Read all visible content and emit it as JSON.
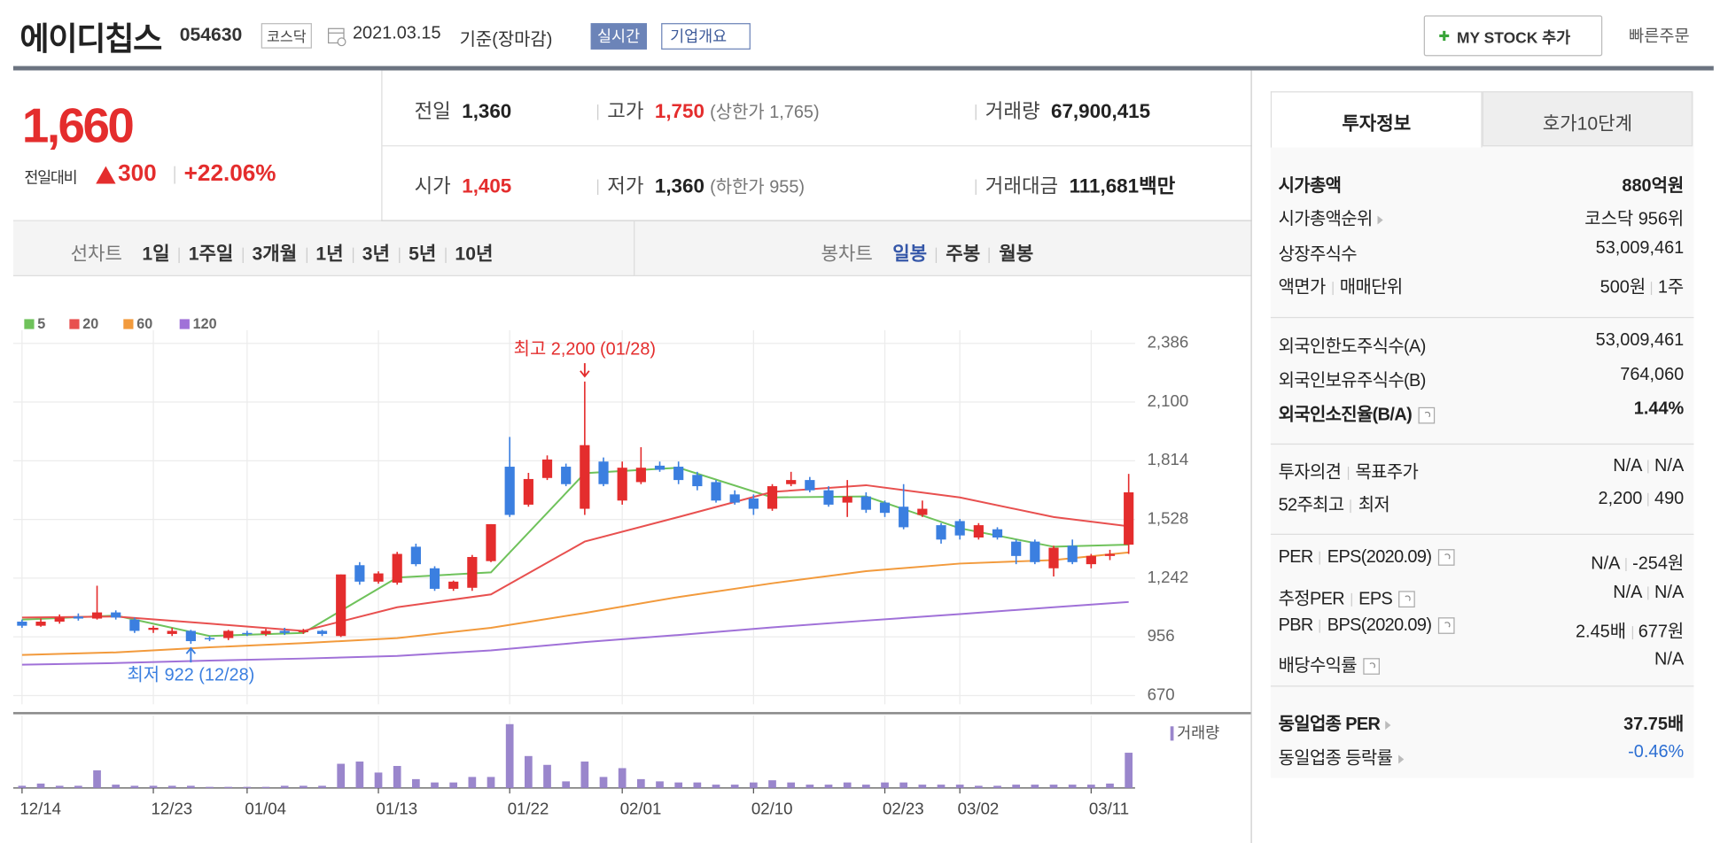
{
  "header": {
    "name": "에이디칩스",
    "code": "054630",
    "market": "코스닥",
    "date": "2021.03.15",
    "basis": "기준(장마감)",
    "realtime": "실시간",
    "overview": "기업개요",
    "mystock": "MY STOCK 추가",
    "quick_order": "빠른주문"
  },
  "quote": {
    "price": "1,660",
    "change_label": "전일대비",
    "change": "300",
    "rate": "+22.06%"
  },
  "summary": [
    {
      "label": "전일",
      "value": "1,360"
    },
    {
      "label": "고가",
      "value": "1,750",
      "note": "(상한가 1,765)"
    },
    {
      "label": "거래량",
      "value": "67,900,415"
    },
    {
      "label": "시가",
      "value": "1,405"
    },
    {
      "label": "저가",
      "value": "1,360",
      "note": "(하한가 955)"
    },
    {
      "label": "거래대금",
      "value": "111,681",
      "unit": "백만"
    }
  ],
  "periods": {
    "line_label": "선차트",
    "line": [
      "1일",
      "1주일",
      "3개월",
      "1년",
      "3년",
      "5년",
      "10년"
    ],
    "candle_label": "봉차트",
    "candle": [
      "일봉",
      "주봉",
      "월봉"
    ]
  },
  "invest": {
    "tabs": [
      "투자정보",
      "호가10단계"
    ],
    "sections": [
      [
        {
          "label": [
            "시가총액"
          ],
          "value": [
            "880억원"
          ],
          "bold": true
        },
        {
          "label": [
            "시가총액순위"
          ],
          "value": [
            "코스닥 956위"
          ],
          "link": true
        },
        {
          "label": [
            "상장주식수"
          ],
          "value": [
            "53,009,461"
          ]
        },
        {
          "label": [
            "액면가",
            "매매단위"
          ],
          "value": [
            "500원",
            "1주"
          ]
        }
      ],
      [
        {
          "label": [
            "외국인한도주식수(A)"
          ],
          "value": [
            "53,009,461"
          ]
        },
        {
          "label": [
            "외국인보유주식수(B)"
          ],
          "value": [
            "764,060"
          ]
        },
        {
          "label": [
            "외국인소진율(B/A)"
          ],
          "value": [
            "1.44%"
          ],
          "bold": true,
          "help": true
        }
      ],
      [
        {
          "label": [
            "투자의견",
            "목표주가"
          ],
          "value": [
            "N/A",
            "N/A"
          ]
        },
        {
          "label": [
            "52주최고",
            "최저"
          ],
          "value": [
            "2,200",
            "490"
          ]
        }
      ],
      [
        {
          "label": [
            "PER",
            "EPS(2020.09)"
          ],
          "value": [
            "N/A",
            "-254원"
          ],
          "help": true
        },
        {
          "label": [
            "추정PER",
            "EPS"
          ],
          "value": [
            "N/A",
            "N/A"
          ],
          "help": true
        },
        {
          "label": [
            "PBR",
            "BPS(2020.09)"
          ],
          "value": [
            "2.45배",
            "677원"
          ],
          "help": true
        },
        {
          "label": [
            "배당수익률"
          ],
          "value": [
            "N/A"
          ],
          "help": true
        }
      ],
      [
        {
          "label": [
            "동일업종 PER"
          ],
          "value": [
            "37.75배"
          ],
          "bold": true,
          "link": true
        },
        {
          "label": [
            "동일업종 등락률"
          ],
          "value": [
            "-0.46%"
          ],
          "link": true,
          "color": "#2d6fd3"
        }
      ]
    ]
  },
  "chart_data": {
    "type": "candlestick",
    "categories": [
      "12/14",
      null,
      null,
      null,
      null,
      null,
      null,
      "12/23",
      null,
      null,
      null,
      null,
      "01/04",
      null,
      null,
      null,
      null,
      null,
      null,
      "01/13",
      null,
      null,
      null,
      null,
      null,
      null,
      "01/22",
      null,
      null,
      null,
      null,
      null,
      "02/01",
      null,
      null,
      null,
      null,
      null,
      null,
      "02/10",
      null,
      null,
      null,
      null,
      null,
      null,
      "02/23",
      null,
      null,
      null,
      "03/02",
      null,
      null,
      null,
      null,
      null,
      null,
      "03/11",
      null,
      null
    ],
    "open": [
      1030,
      1010,
      1030,
      1055,
      1045,
      1075,
      1040,
      990,
      970,
      985,
      950,
      950,
      975,
      970,
      985,
      980,
      985,
      960,
      1305,
      1225,
      1220,
      1395,
      1290,
      1190,
      1195,
      1325,
      1785,
      1600,
      1730,
      1785,
      1580,
      1810,
      1620,
      1710,
      1790,
      1785,
      1745,
      1710,
      1650,
      1630,
      1580,
      1700,
      1720,
      1670,
      1610,
      1640,
      1610,
      1590,
      1550,
      1500,
      1520,
      1440,
      1480,
      1420,
      1420,
      1290,
      1400,
      1310,
      1350,
      1405
    ],
    "high": [
      1040,
      1045,
      1065,
      1070,
      1205,
      1085,
      1050,
      1010,
      1000,
      990,
      960,
      990,
      985,
      995,
      1000,
      995,
      990,
      1260,
      1320,
      1275,
      1370,
      1410,
      1300,
      1230,
      1355,
      1505,
      1930,
      1755,
      1840,
      1800,
      2200,
      1830,
      1810,
      1880,
      1810,
      1810,
      1760,
      1720,
      1670,
      1650,
      1700,
      1760,
      1735,
      1690,
      1720,
      1660,
      1620,
      1700,
      1620,
      1510,
      1530,
      1510,
      1490,
      1430,
      1430,
      1400,
      1430,
      1360,
      1380,
      1750
    ],
    "low": [
      1000,
      1005,
      1020,
      1035,
      1040,
      1040,
      975,
      975,
      960,
      922,
      935,
      940,
      960,
      960,
      965,
      970,
      960,
      955,
      1210,
      1215,
      1210,
      1300,
      1180,
      1180,
      1180,
      1320,
      1540,
      1590,
      1720,
      1690,
      1550,
      1690,
      1600,
      1700,
      1760,
      1700,
      1670,
      1610,
      1600,
      1550,
      1570,
      1690,
      1660,
      1590,
      1540,
      1560,
      1540,
      1480,
      1540,
      1410,
      1430,
      1430,
      1430,
      1310,
      1310,
      1250,
      1310,
      1290,
      1330,
      1360
    ],
    "close": [
      1010,
      1030,
      1050,
      1045,
      1075,
      1050,
      985,
      1000,
      985,
      935,
      945,
      985,
      970,
      985,
      975,
      985,
      970,
      1260,
      1225,
      1265,
      1360,
      1310,
      1190,
      1225,
      1345,
      1505,
      1550,
      1725,
      1820,
      1700,
      1890,
      1700,
      1780,
      1780,
      1770,
      1720,
      1690,
      1620,
      1610,
      1580,
      1690,
      1720,
      1670,
      1600,
      1640,
      1575,
      1560,
      1490,
      1580,
      1430,
      1450,
      1500,
      1440,
      1350,
      1320,
      1390,
      1320,
      1350,
      1360,
      1660
    ],
    "up_color": "#e42d2d",
    "down_color": "#3b7fe0",
    "ylim": [
      670,
      2386
    ],
    "yticks": [
      670,
      956,
      {
        "value": 1242,
        "label": "1,242"
      },
      {
        "value": 1528,
        "label": "1,528"
      },
      {
        "value": 1814,
        "label": "1,814"
      },
      {
        "value": 2100,
        "label": "2,100"
      },
      {
        "value": 2386,
        "label": "2,386"
      }
    ],
    "grid": true,
    "series": [
      {
        "name": "5",
        "color": "#6fc25b",
        "x": [
          0,
          5,
          10,
          15,
          20,
          25,
          30,
          35,
          40,
          45,
          50,
          55,
          59
        ],
        "values": [
          1040,
          1060,
          960,
          975,
          1245,
          1270,
          1753,
          1780,
          1635,
          1640,
          1485,
          1395,
          1405
        ]
      },
      {
        "name": "20",
        "color": "#e8504f",
        "x": [
          0,
          5,
          10,
          15,
          20,
          25,
          30,
          35,
          40,
          45,
          50,
          55,
          59
        ],
        "values": [
          1050,
          1055,
          1020,
          985,
          1100,
          1163,
          1420,
          1540,
          1662,
          1695,
          1635,
          1540,
          1495
        ]
      },
      {
        "name": "60",
        "color": "#f29a3c",
        "x": [
          0,
          5,
          10,
          15,
          20,
          25,
          30,
          35,
          40,
          45,
          50,
          55,
          59
        ],
        "values": [
          868,
          880,
          905,
          925,
          950,
          1000,
          1072,
          1150,
          1217,
          1276,
          1313,
          1330,
          1367
        ]
      },
      {
        "name": "120",
        "color": "#a071d8",
        "x": [
          0,
          5,
          10,
          15,
          20,
          25,
          30,
          35,
          40,
          45,
          50,
          55,
          59
        ],
        "values": [
          820,
          828,
          840,
          850,
          863,
          890,
          930,
          965,
          1002,
          1035,
          1067,
          1100,
          1126
        ]
      }
    ],
    "volume": {
      "name": "거래량",
      "color": "#9a86cc",
      "values": [
        4200000,
        8500000,
        4200000,
        4200000,
        34000000,
        6400000,
        4200000,
        4200000,
        4200000,
        4200000,
        2100000,
        2100000,
        2100000,
        2100000,
        4200000,
        4200000,
        4200000,
        46600000,
        50900000,
        29700000,
        42400000,
        17000000,
        10600000,
        10600000,
        21200000,
        21200000,
        123000000,
        61500000,
        44500000,
        12700000,
        50900000,
        21200000,
        38200000,
        17000000,
        12700000,
        10600000,
        10600000,
        6400000,
        6400000,
        10600000,
        14800000,
        10600000,
        6400000,
        6400000,
        10600000,
        6400000,
        10600000,
        10600000,
        6400000,
        6400000,
        6400000,
        4200000,
        4200000,
        6400000,
        6400000,
        6400000,
        6400000,
        6400000,
        8500000,
        67900415
      ]
    },
    "annotations": [
      {
        "text": "최고 2,200 (01/28)"
      },
      {
        "text": "최저 922 (12/28)"
      }
    ]
  }
}
